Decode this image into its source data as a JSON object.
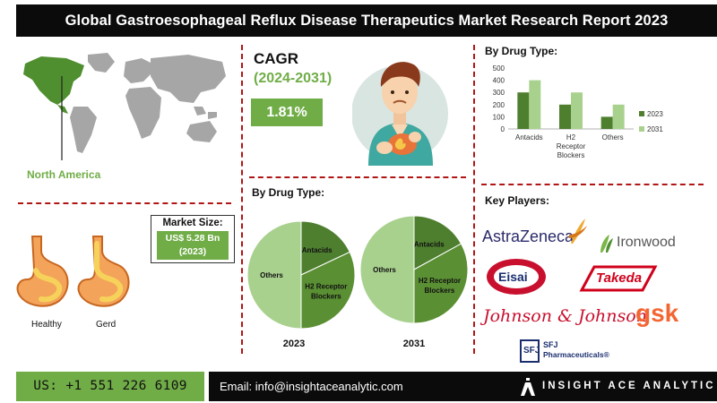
{
  "header": {
    "title": "Global Gastroesophageal Reflux Disease Therapeutics Market Research Report 2023"
  },
  "region": {
    "label": "North America"
  },
  "cagr": {
    "title": "CAGR",
    "period": "(2024-2031)",
    "value": "1.81%"
  },
  "market_size": {
    "label": "Market Size:",
    "value_line1": "US$ 5.28 Bn",
    "value_line2": "(2023)"
  },
  "stomach": {
    "healthy": "Healthy",
    "gerd": "Gerd"
  },
  "pies_title": "By Drug Type:",
  "bar_title": "By Drug Type:",
  "key_players": {
    "title": "Key Players:",
    "logos": [
      "AstraZeneca",
      "Ironwood",
      "Eisai",
      "Takeda",
      "Johnson & Johnson",
      "gsk",
      "SFJ",
      "Pharmaceuticals®"
    ]
  },
  "footer": {
    "phone": "US: +1 551 226 6109",
    "email": "Email: info@insightaceanalytic.com",
    "brand": "INSIGHT ACE ANALYTIC"
  },
  "colors": {
    "accent_green": "#70ad47",
    "dark_green": "#4e7f2f",
    "light_green": "#a9d18e",
    "divider_red": "#b01616",
    "black": "#0b0b0b"
  },
  "chart_data": [
    {
      "type": "bar",
      "title": "By Drug Type:",
      "categories": [
        "Antacids",
        "H2 Receptor Blockers",
        "Others"
      ],
      "category_lines": [
        [
          "Antacids"
        ],
        [
          "H2",
          "Receptor",
          "Blockers"
        ],
        [
          "Others"
        ]
      ],
      "series": [
        {
          "name": "2023",
          "values": [
            300,
            200,
            100
          ],
          "color": "#4e7f2f"
        },
        {
          "name": "2031",
          "values": [
            400,
            300,
            200
          ],
          "color": "#a9d18e"
        }
      ],
      "yticks": [
        0,
        100,
        200,
        300,
        400,
        500
      ],
      "ylim": [
        0,
        500
      ],
      "legend": "right",
      "grid": false
    },
    {
      "type": "pie",
      "label": "2023",
      "slices": [
        {
          "name": "Antacids",
          "value": 18,
          "color": "#4e7f2f"
        },
        {
          "name": "H2 Receptor Blockers",
          "value": 32,
          "color": "#5a8f33"
        },
        {
          "name": "Others",
          "value": 50,
          "color": "#a9d18e"
        }
      ]
    },
    {
      "type": "pie",
      "label": "2031",
      "slices": [
        {
          "name": "Antacids",
          "value": 17,
          "color": "#4e7f2f"
        },
        {
          "name": "H2 Receptor Blockers",
          "value": 33,
          "color": "#5a8f33"
        },
        {
          "name": "Others",
          "value": 50,
          "color": "#a9d18e"
        }
      ]
    }
  ]
}
